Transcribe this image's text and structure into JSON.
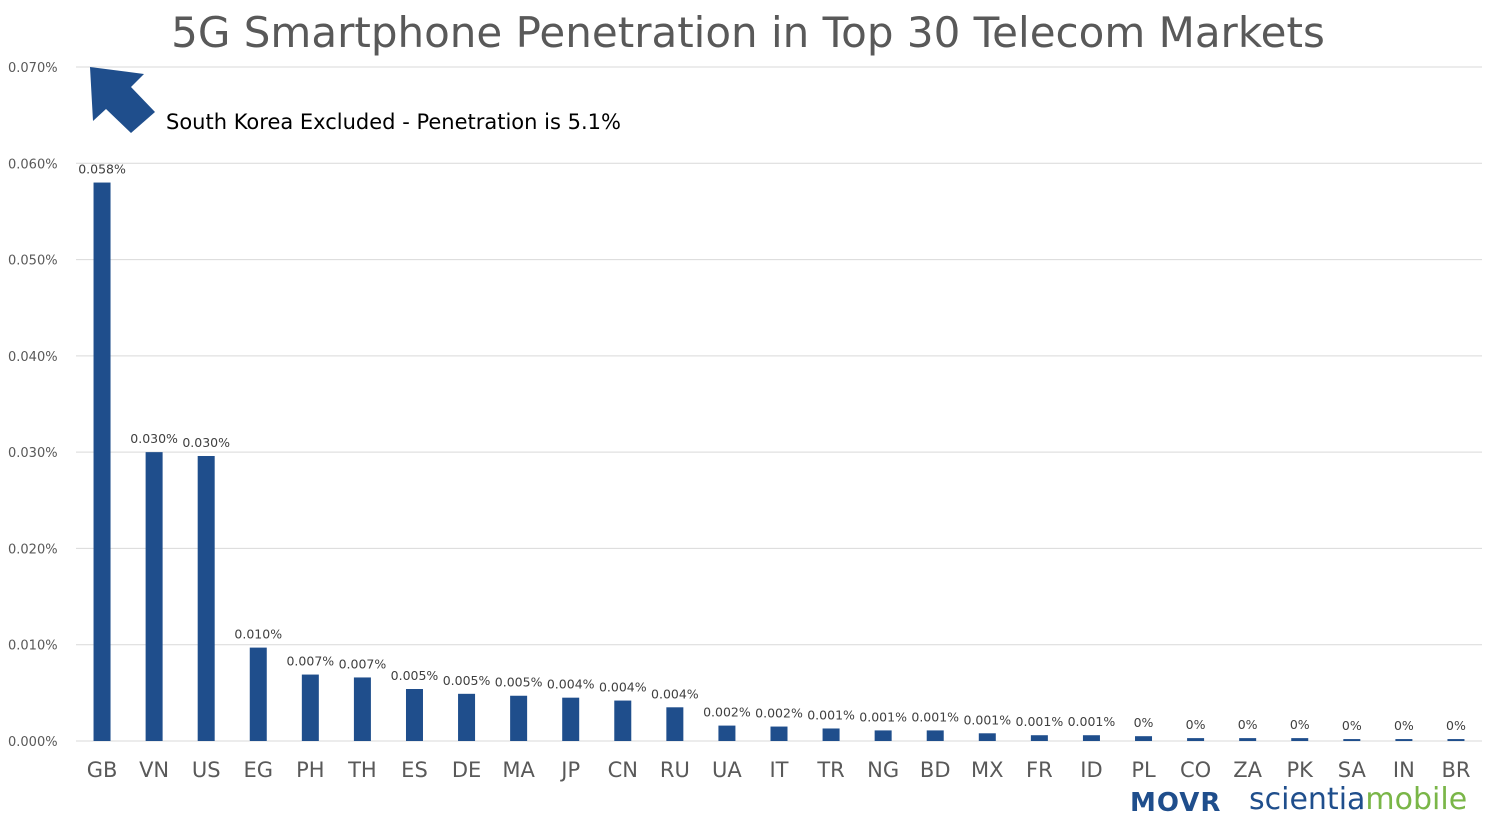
{
  "chart_data": {
    "type": "bar",
    "title": "5G Smartphone Penetration in Top 30 Telecom Markets",
    "annotation": "South Korea Excluded - Penetration is 5.1%",
    "categories": [
      "GB",
      "VN",
      "US",
      "EG",
      "PH",
      "TH",
      "ES",
      "DE",
      "MA",
      "JP",
      "CN",
      "RU",
      "UA",
      "IT",
      "TR",
      "NG",
      "BD",
      "MX",
      "FR",
      "ID",
      "PL",
      "CO",
      "ZA",
      "PK",
      "SA",
      "IN",
      "BR"
    ],
    "values": [
      0.058,
      0.03,
      0.0296,
      0.0097,
      0.0069,
      0.0066,
      0.0054,
      0.0049,
      0.0047,
      0.0045,
      0.0042,
      0.0035,
      0.0016,
      0.0015,
      0.0013,
      0.0011,
      0.0011,
      0.0008,
      0.0006,
      0.0006,
      0.0005,
      0.0003,
      0.0003,
      0.0003,
      0.0002,
      0.0002,
      0.0002
    ],
    "data_labels": [
      "0.058%",
      "0.030%",
      "0.030%",
      "0.010%",
      "0.007%",
      "0.007%",
      "0.005%",
      "0.005%",
      "0.005%",
      "0.004%",
      "0.004%",
      "0.004%",
      "0.002%",
      "0.002%",
      "0.001%",
      "0.001%",
      "0.001%",
      "0.001%",
      "0.001%",
      "0.001%",
      "0%",
      "0%",
      "0%",
      "0%",
      "0%",
      "0%",
      "0%"
    ],
    "yticks": [
      "0.000%",
      "0.010%",
      "0.020%",
      "0.030%",
      "0.040%",
      "0.050%",
      "0.060%",
      "0.070%"
    ],
    "ylim": [
      0,
      0.07
    ],
    "xlabel": "",
    "ylabel": "",
    "grid": true,
    "legend": "none"
  },
  "colors": {
    "bar": "#1F4E8C",
    "arrow": "#1F4E8C",
    "grid": "#D9D9D9",
    "tick_text": "#595959",
    "movr": "#1F4E8C",
    "scientia": "#1F4E8C",
    "mobile": "#7AB648"
  },
  "branding": {
    "movr": "MOVR",
    "scientia": "scientia",
    "mobile": "mobile"
  },
  "icons": {
    "arrow": "arrow-up-left-icon"
  }
}
